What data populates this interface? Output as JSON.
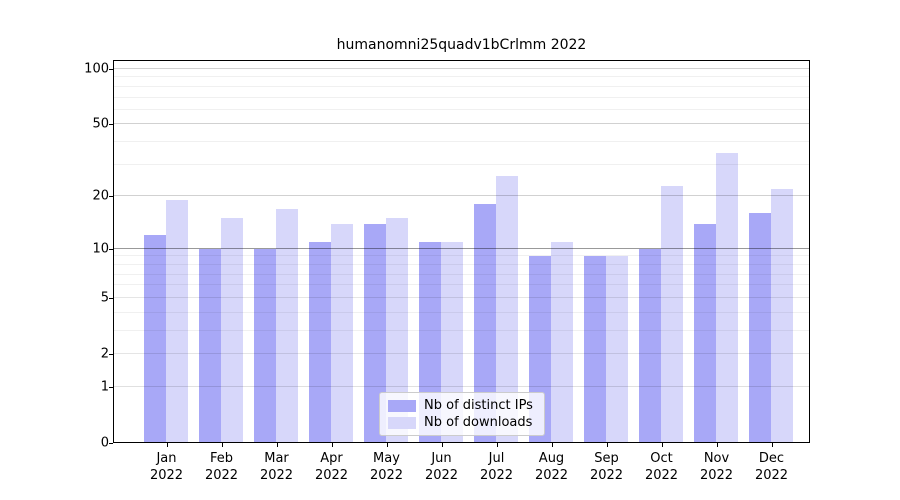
{
  "chart_data": {
    "type": "bar",
    "title": "humanomni25quadv1bCrlmm 2022",
    "categories": [
      "Jan",
      "Feb",
      "Mar",
      "Apr",
      "May",
      "Jun",
      "Jul",
      "Aug",
      "Sep",
      "Oct",
      "Nov",
      "Dec"
    ],
    "category_year": "2022",
    "series": [
      {
        "name": "Nb of distinct IPs",
        "color": "#a8a8f7",
        "values": [
          12,
          10,
          10,
          11,
          14,
          11,
          18,
          9,
          9,
          10,
          14,
          16
        ]
      },
      {
        "name": "Nb of downloads",
        "color": "#d7d7fa",
        "values": [
          19,
          15,
          17,
          14,
          15,
          11,
          26,
          11,
          9,
          23,
          35,
          22
        ]
      }
    ],
    "y_axis": {
      "scale": "log1p",
      "ylim": [
        0,
        100
      ],
      "tick_values": [
        0,
        1,
        2,
        5,
        10,
        20,
        50,
        100
      ],
      "tick_labels": [
        "0",
        "1",
        "2",
        "5",
        "10",
        "20",
        "50",
        "100"
      ]
    },
    "gridlines": [
      {
        "v": 1,
        "alpha": 0.12
      },
      {
        "v": 2,
        "alpha": 0.1
      },
      {
        "v": 3,
        "alpha": 0.06
      },
      {
        "v": 4,
        "alpha": 0.06
      },
      {
        "v": 5,
        "alpha": 0.1
      },
      {
        "v": 6,
        "alpha": 0.06
      },
      {
        "v": 7,
        "alpha": 0.06
      },
      {
        "v": 8,
        "alpha": 0.06
      },
      {
        "v": 9,
        "alpha": 0.06
      },
      {
        "v": 10,
        "alpha": 0.4
      },
      {
        "v": 20,
        "alpha": 0.18
      },
      {
        "v": 30,
        "alpha": 0.06
      },
      {
        "v": 40,
        "alpha": 0.06
      },
      {
        "v": 50,
        "alpha": 0.18
      },
      {
        "v": 60,
        "alpha": 0.06
      },
      {
        "v": 70,
        "alpha": 0.06
      },
      {
        "v": 80,
        "alpha": 0.06
      },
      {
        "v": 90,
        "alpha": 0.06
      },
      {
        "v": 100,
        "alpha": 0.18
      }
    ],
    "legend": {
      "position": "lower center"
    },
    "grid": true
  }
}
